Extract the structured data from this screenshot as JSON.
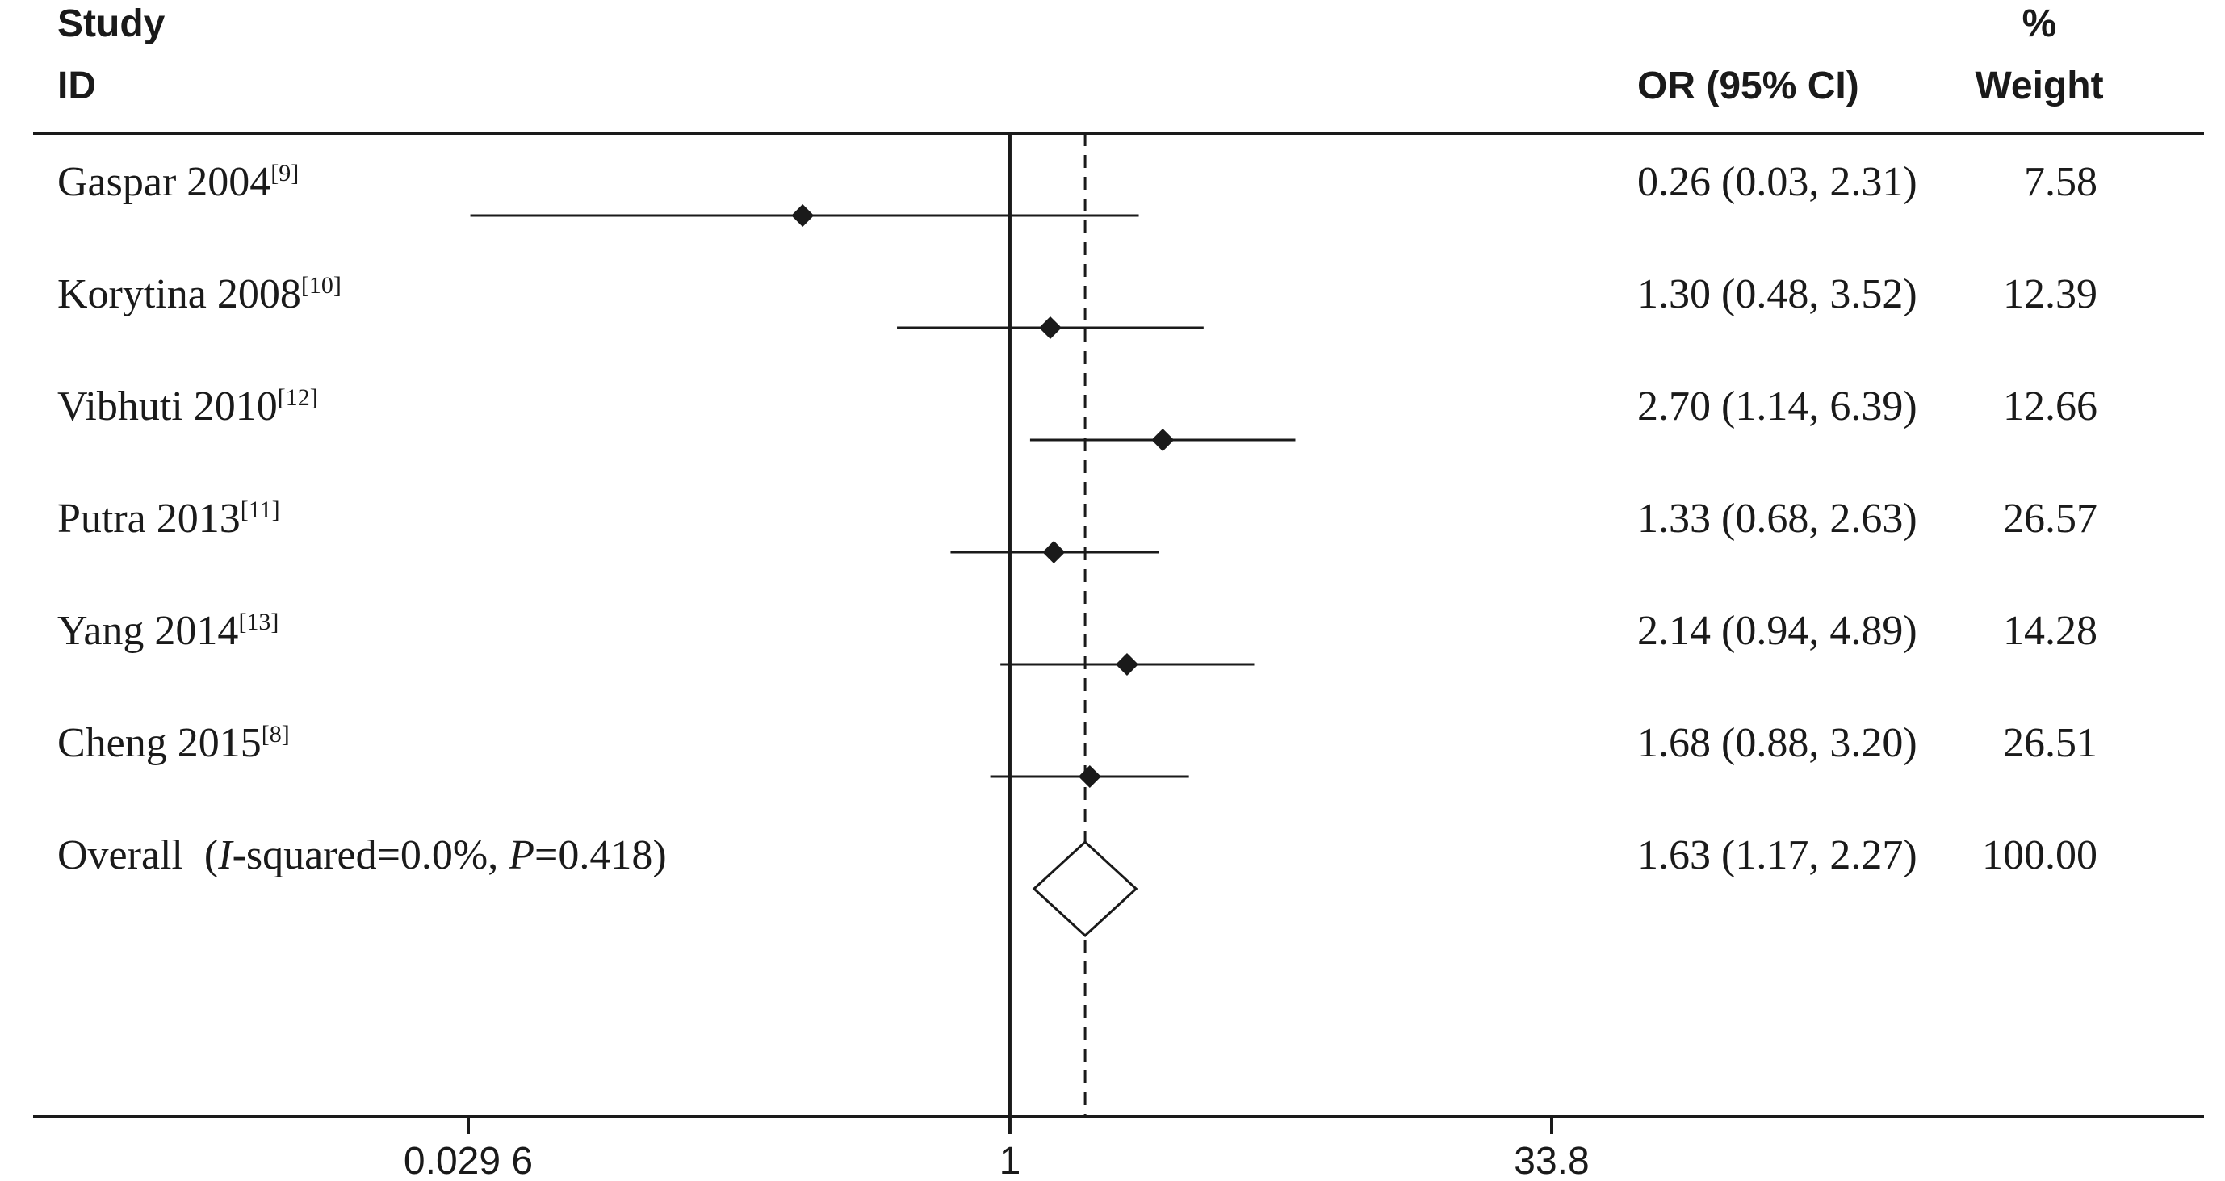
{
  "headers": {
    "study_line1": "Study",
    "study_line2": "ID",
    "or_ci": "OR (95% CI)",
    "weight_line1": "%",
    "weight_line2": "Weight"
  },
  "chart_data": {
    "type": "forest",
    "scale": "log",
    "x_ticks": [
      {
        "value": 0.0296,
        "label": "0.029 6"
      },
      {
        "value": 1,
        "label": "1"
      },
      {
        "value": 33.8,
        "label": "33.8"
      }
    ],
    "xlim": [
      0.0296,
      33.8
    ],
    "null_line": 1,
    "pooled_line": 1.63,
    "studies": [
      {
        "name": "Gaspar 2004",
        "ref": "[9]",
        "or": 0.26,
        "lower": 0.03,
        "upper": 2.31,
        "or_ci_text": "0.26 (0.03, 2.31)",
        "weight": "7.58"
      },
      {
        "name": "Korytina 2008",
        "ref": "[10]",
        "or": 1.3,
        "lower": 0.48,
        "upper": 3.52,
        "or_ci_text": "1.30 (0.48, 3.52)",
        "weight": "12.39"
      },
      {
        "name": "Vibhuti 2010",
        "ref": "[12]",
        "or": 2.7,
        "lower": 1.14,
        "upper": 6.39,
        "or_ci_text": "2.70 (1.14, 6.39)",
        "weight": "12.66"
      },
      {
        "name": "Putra 2013",
        "ref": "[11]",
        "or": 1.33,
        "lower": 0.68,
        "upper": 2.63,
        "or_ci_text": "1.33 (0.68, 2.63)",
        "weight": "26.57"
      },
      {
        "name": "Yang 2014",
        "ref": "[13]",
        "or": 2.14,
        "lower": 0.94,
        "upper": 4.89,
        "or_ci_text": "2.14 (0.94, 4.89)",
        "weight": "14.28"
      },
      {
        "name": "Cheng 2015",
        "ref": "[8]",
        "or": 1.68,
        "lower": 0.88,
        "upper": 3.2,
        "or_ci_text": "1.68 (0.88, 3.20)",
        "weight": "26.51"
      }
    ],
    "overall": {
      "label_prefix": "Overall  (",
      "i2_italic": "I",
      "i2_text": "-squared=0.0%, ",
      "p_italic": "P",
      "p_text": "=0.418)",
      "or": 1.63,
      "lower": 1.17,
      "upper": 2.27,
      "or_ci_text": "1.63 (1.17, 2.27)",
      "weight": "100.00"
    }
  }
}
